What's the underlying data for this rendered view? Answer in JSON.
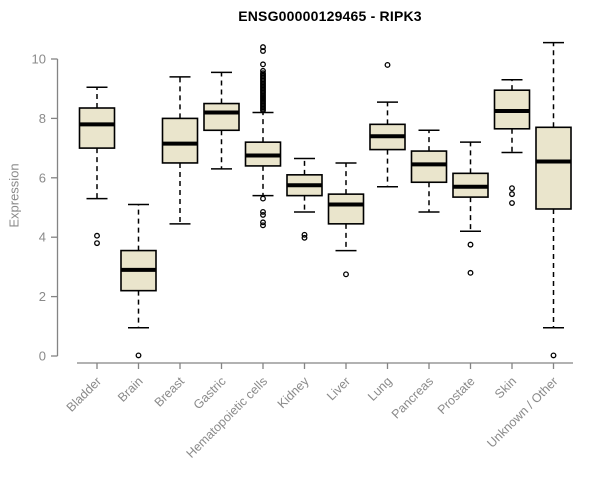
{
  "chart_data": {
    "type": "boxplot",
    "title": "ENSG00000129465 - RIPK3",
    "ylabel": "Expression",
    "xlabel": "",
    "ylim": [
      0,
      10
    ],
    "yticks": [
      0,
      2,
      4,
      6,
      8,
      10
    ],
    "grid": false,
    "legend": "none",
    "categories": [
      "Bladder",
      "Brain",
      "Breast",
      "Gastric",
      "Hematopoietic cells",
      "Kidney",
      "Liver",
      "Lung",
      "Pancreas",
      "Prostate",
      "Skin",
      "Unknown / Other"
    ],
    "series": [
      {
        "name": "Bladder",
        "low": 5.3,
        "q1": 7.0,
        "median": 7.8,
        "q3": 8.35,
        "high": 9.05,
        "outliers": [
          4.05,
          3.8
        ]
      },
      {
        "name": "Brain",
        "low": 0.95,
        "q1": 2.2,
        "median": 2.9,
        "q3": 3.55,
        "high": 5.1,
        "outliers": [
          0.02
        ]
      },
      {
        "name": "Breast",
        "low": 4.45,
        "q1": 6.5,
        "median": 7.15,
        "q3": 8.0,
        "high": 9.4,
        "outliers": []
      },
      {
        "name": "Gastric",
        "low": 6.3,
        "q1": 7.6,
        "median": 8.2,
        "q3": 8.5,
        "high": 9.55,
        "outliers": []
      },
      {
        "name": "Hematopoietic cells",
        "low": 5.4,
        "q1": 6.4,
        "median": 6.75,
        "q3": 7.2,
        "high": 8.2,
        "outliers": [
          10.4,
          10.27,
          9.82,
          9.6,
          9.52,
          9.47,
          9.42,
          9.37,
          9.32,
          9.27,
          9.22,
          9.17,
          9.12,
          9.07,
          9.02,
          8.97,
          8.92,
          8.87,
          8.82,
          8.77,
          8.72,
          8.67,
          8.62,
          8.57,
          8.52,
          8.47,
          8.42,
          8.37,
          8.32,
          8.27,
          5.3,
          4.85,
          4.75,
          4.5,
          4.4
        ]
      },
      {
        "name": "Kidney",
        "low": 4.85,
        "q1": 5.4,
        "median": 5.75,
        "q3": 6.1,
        "high": 6.65,
        "outliers": [
          4.08,
          3.98
        ]
      },
      {
        "name": "Liver",
        "low": 3.55,
        "q1": 4.45,
        "median": 5.1,
        "q3": 5.45,
        "high": 6.5,
        "outliers": [
          2.75
        ]
      },
      {
        "name": "Lung",
        "low": 5.7,
        "q1": 6.95,
        "median": 7.4,
        "q3": 7.8,
        "high": 8.55,
        "outliers": [
          9.8
        ]
      },
      {
        "name": "Pancreas",
        "low": 4.85,
        "q1": 5.85,
        "median": 6.45,
        "q3": 6.9,
        "high": 7.6,
        "outliers": []
      },
      {
        "name": "Prostate",
        "low": 4.2,
        "q1": 5.35,
        "median": 5.7,
        "q3": 6.15,
        "high": 7.2,
        "outliers": [
          3.75,
          2.8
        ]
      },
      {
        "name": "Skin",
        "low": 6.85,
        "q1": 7.65,
        "median": 8.25,
        "q3": 8.95,
        "high": 9.3,
        "outliers": [
          5.65,
          5.45,
          5.15
        ]
      },
      {
        "name": "Unknown / Other",
        "low": 0.95,
        "q1": 4.95,
        "median": 6.55,
        "q3": 7.7,
        "high": 10.55,
        "outliers": [
          0.02
        ]
      }
    ]
  },
  "colors": {
    "box_fill": "#eae5cc",
    "box_stroke": "#000000",
    "median": "#000000",
    "whisker": "#000000",
    "axis": "#848484",
    "tick_label": "#8a8a8a",
    "title": "#000000",
    "background": "#ffffff"
  }
}
